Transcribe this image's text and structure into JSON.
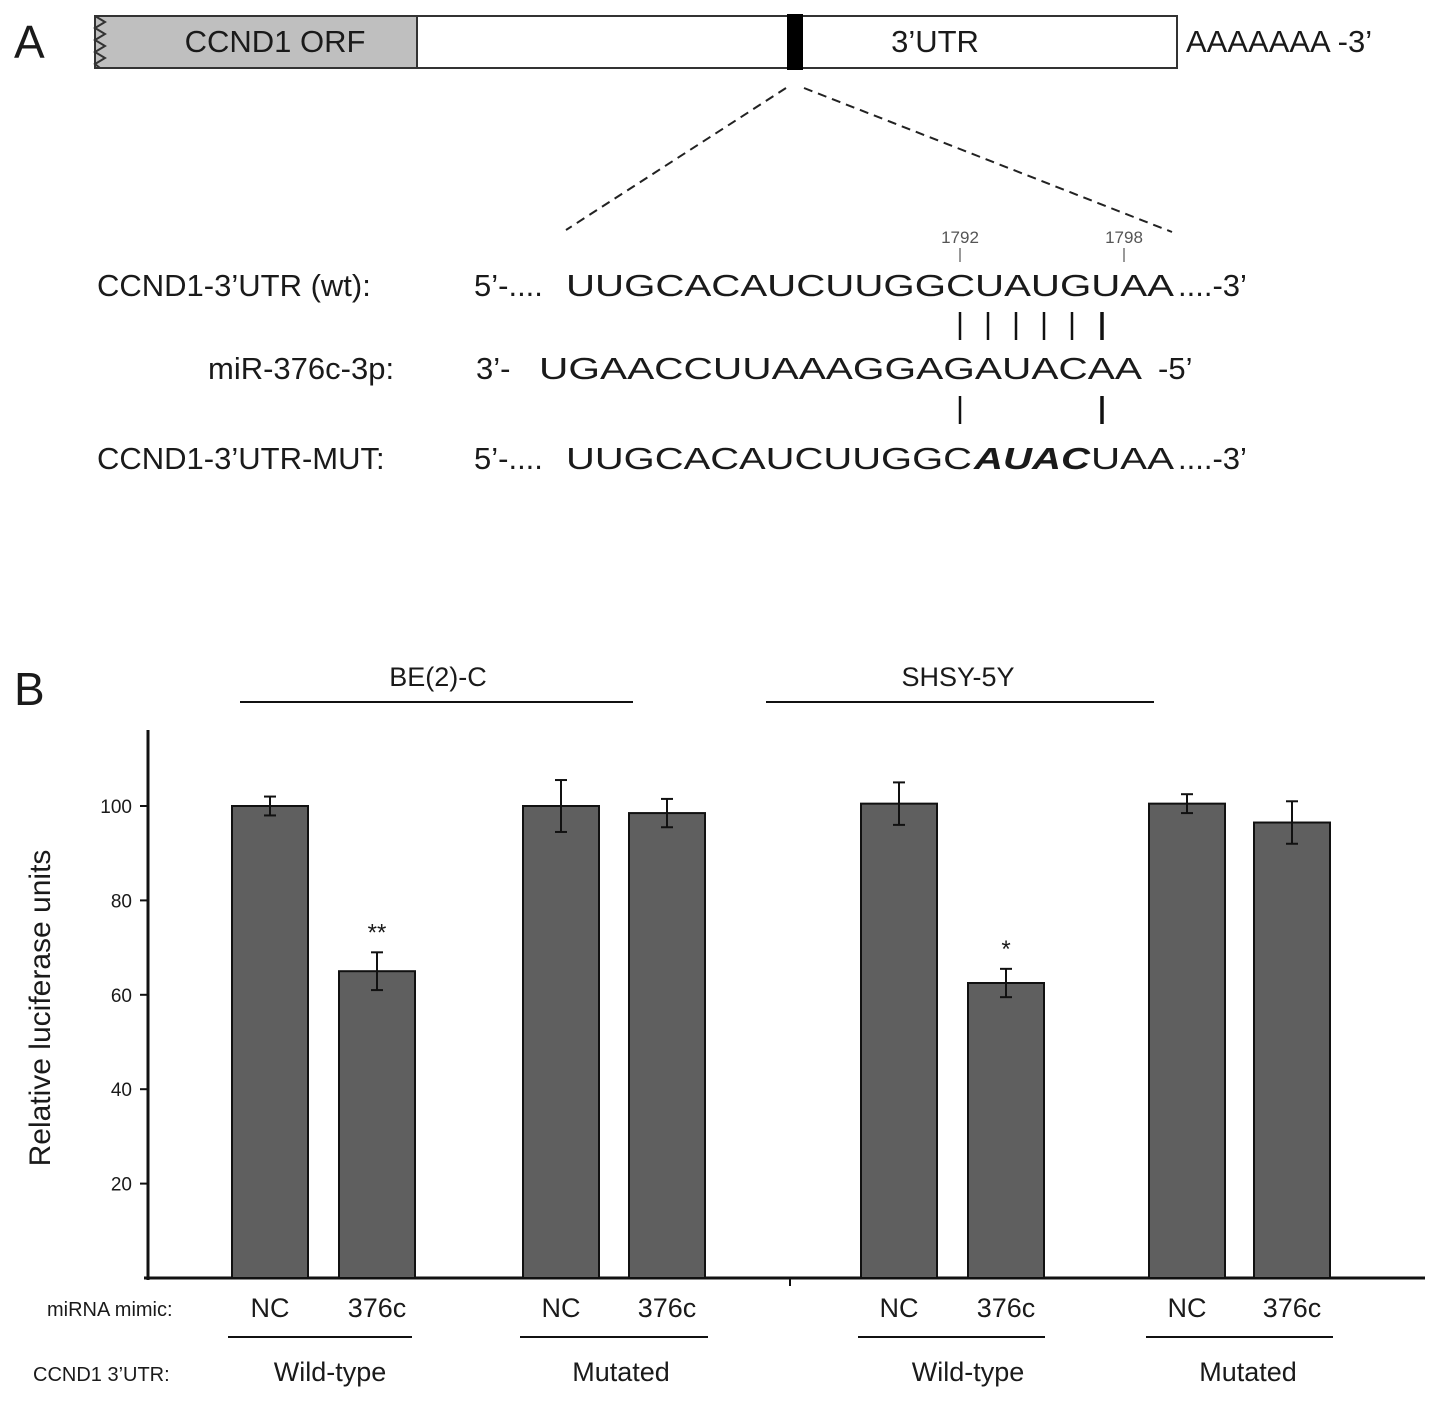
{
  "panel_a": {
    "letter": "A",
    "orf_label": "CCND1 ORF",
    "utr_label": "3’UTR",
    "polya": "AAAAAAA -3’",
    "positions": [
      "1792",
      "1798"
    ],
    "rows": [
      {
        "label": "CCND1-3’UTR (wt):",
        "prefix": "5’-....",
        "seq": "UUGCACAUCUUGGCUAUGUAA",
        "suffix": "....-3’"
      },
      {
        "label": "miR-376c-3p:",
        "prefix": "3’-",
        "seq": "UGAACCUUAAAGGAGAUACAA",
        "suffix": "-5’"
      },
      {
        "label": "CCND1-3’UTR-MUT:",
        "prefix": "5’-....",
        "seq_plain_1": "UUGCACAUCUUGGC",
        "seq_mut": "AUAC",
        "seq_plain_2": "UAA",
        "suffix": "....-3’"
      }
    ]
  },
  "panel_b": {
    "letter": "B",
    "row1_header": "miRNA mimic:",
    "row2_header": "CCND1 3’UTR:",
    "cell_lines": [
      "BE(2)-C",
      "SHSY-5Y"
    ],
    "groups": [
      "Wild-type",
      "Mutated",
      "Wild-type",
      "Mutated"
    ]
  },
  "chart_data": {
    "type": "bar",
    "ylabel": "Relative luciferase units",
    "ylim": [
      0,
      115
    ],
    "yticks": [
      20,
      40,
      60,
      80,
      100
    ],
    "categories": [
      "NC",
      "376c",
      "NC",
      "376c",
      "NC",
      "376c",
      "NC",
      "376c"
    ],
    "values": [
      100,
      65,
      100,
      98.5,
      100.5,
      62.5,
      100.5,
      96.5
    ],
    "errors": [
      2,
      4,
      5.5,
      3,
      4.5,
      3,
      2,
      4.5
    ],
    "significance": [
      "",
      "**",
      "",
      "",
      "",
      "*",
      "",
      ""
    ],
    "bar_color": "#5f5f5f",
    "orf_color": "#bfbfbf"
  }
}
